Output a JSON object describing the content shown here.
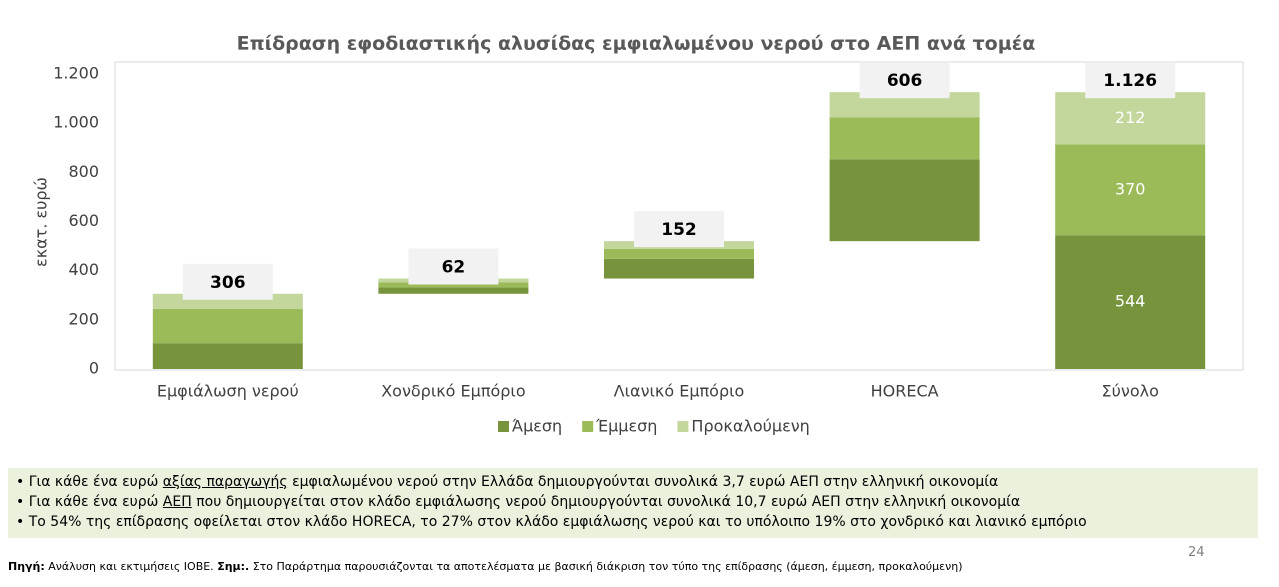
{
  "chart_data": {
    "type": "waterfall",
    "title": "Επίδραση εφοδιαστικής αλυσίδας εμφιαλωμένου νερού στο ΑΕΠ ανά τομέα",
    "y_label": "εκατ. ευρώ",
    "categories": [
      "Εμφιάλωση νερού",
      "Χονδρικό Εμπόριο",
      "Λιανικό Εμπόριο",
      "HORECA",
      "Σύνολο"
    ],
    "series": [
      {
        "name": "Άμεση",
        "color": "#77933c",
        "values": [
          105,
          26,
          80,
          333,
          544
        ]
      },
      {
        "name": "Έμμεση",
        "color": "#9bbb59",
        "values": [
          139,
          20,
          41,
          170,
          370
        ]
      },
      {
        "name": "Προκαλούμενη",
        "color": "#c3d69b",
        "values": [
          62,
          16,
          31,
          103,
          212
        ]
      }
    ],
    "totals": [
      306,
      62,
      152,
      606,
      1126
    ],
    "total_labels": [
      "306",
      "62",
      "152",
      "606",
      "1.126"
    ],
    "last_is_total": true,
    "ylim": [
      0,
      1200
    ],
    "yticks": [
      0,
      200,
      400,
      600,
      800,
      {
        "value": 1000,
        "label": "1.000"
      },
      {
        "value": 1200,
        "label": "1.200"
      }
    ]
  },
  "notes": [
    [
      "Για κάθε ένα ευρώ ",
      "αξίας παραγωγής",
      " εμφιαλωμένου νερού στην Ελλάδα δημιουργούνται συνολικά 3,7 ευρώ ΑΕΠ στην ελληνική οικονομία"
    ],
    [
      "Για κάθε ένα ευρώ ",
      "ΑΕΠ",
      " που δημιουργείται στον κλάδο εμφιάλωσης νερού δημιουργούνται συνολικά 10,7 ευρώ ΑΕΠ στην ελληνική οικονομία"
    ],
    [
      "Το 54% της επίδρασης οφείλεται στον κλάδο HORECA, το 27% στον κλάδο εμφιάλωσης νερού και το υπόλοιπο 19% στο χονδρικό και λιανικό εμπόριο"
    ]
  ],
  "source": {
    "label": "Πηγή:",
    "text": " Ανάλυση και εκτιμήσεις ΙΟΒΕ. ",
    "note_label": "Σημ:.",
    "note": " Στο Παράρτημα παρουσιάζονται τα αποτελέσματα με βασική διάκριση τον τύπο της επίδρασης (άμεση, έμμεση, προκαλούμενη)"
  },
  "page_number": "24"
}
